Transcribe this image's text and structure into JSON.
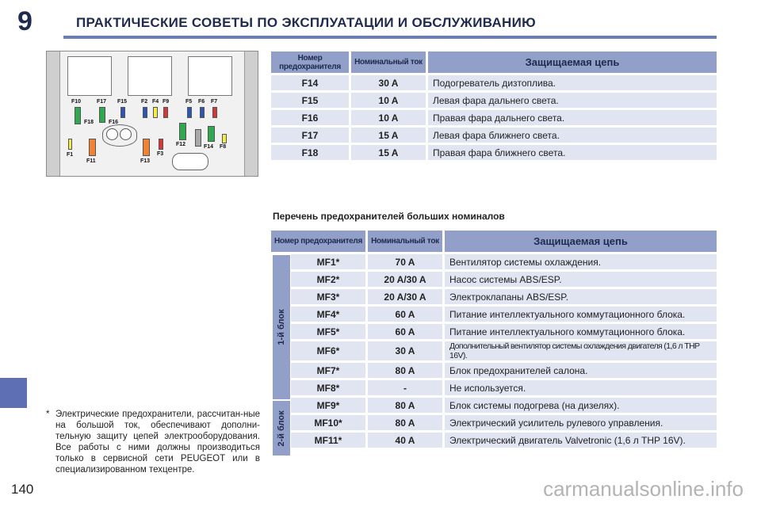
{
  "header": {
    "chapter_number": "9",
    "title": "ПРАКТИЧЕСКИЕ СОВЕТЫ ПО ЭКСПЛУАТАЦИИ И ОБСЛУЖИВАНИЮ"
  },
  "page_number": "140",
  "watermark": "carmanualsonline.info",
  "diagram": {
    "labels": [
      "F10",
      "F17",
      "F15",
      "F2",
      "F4",
      "F9",
      "F5",
      "F6",
      "F7",
      "F18",
      "F16",
      "F1",
      "F11",
      "F13",
      "F3",
      "F12",
      "F14",
      "F8"
    ],
    "colors": {
      "green": "#2fa84f",
      "blue": "#2a56b8",
      "red": "#d93535",
      "yellow": "#f2ec4a",
      "orange": "#ee8433",
      "grey": "#a9a9a9"
    }
  },
  "table1": {
    "headers": [
      "Номер предохранителя",
      "Номинальный ток",
      "Защищаемая цепь"
    ],
    "rows": [
      {
        "fuse": "F14",
        "current": "30 A",
        "circuit": "Подогреватель дизтоплива."
      },
      {
        "fuse": "F15",
        "current": "10 A",
        "circuit": "Левая фара дальнего света."
      },
      {
        "fuse": "F16",
        "current": "10 A",
        "circuit": "Правая фара дальнего света."
      },
      {
        "fuse": "F17",
        "current": "15 A",
        "circuit": "Левая фара ближнего света."
      },
      {
        "fuse": "F18",
        "current": "15 A",
        "circuit": "Правая фара ближнего света."
      }
    ]
  },
  "section_title": "Перечень предохранителей больших номиналов",
  "table2": {
    "headers": [
      "Номер предохранителя",
      "Номинальный ток",
      "Защищаемая цепь"
    ],
    "block1_label": "1-й блок",
    "block2_label": "2-й блок",
    "rows": [
      {
        "fuse": "MF1*",
        "current": "70 A",
        "circuit": "Вентилятор системы охлаждения."
      },
      {
        "fuse": "MF2*",
        "current": "20 A/30 A",
        "circuit": "Насос системы ABS/ESP."
      },
      {
        "fuse": "MF3*",
        "current": "20 A/30 A",
        "circuit": "Электроклапаны ABS/ESP."
      },
      {
        "fuse": "MF4*",
        "current": "60 A",
        "circuit": "Питание интеллектуального коммутационного блока."
      },
      {
        "fuse": "MF5*",
        "current": "60 A",
        "circuit": "Питание интеллектуального коммутационного блока."
      },
      {
        "fuse": "MF6*",
        "current": "30 A",
        "circuit": "Дополнительный вентилятор системы охлаждения двигателя (1,6 л THP 16V)."
      },
      {
        "fuse": "MF7*",
        "current": "80 A",
        "circuit": "Блок предохранителей салона."
      },
      {
        "fuse": "MF8*",
        "current": "-",
        "circuit": "Не используется."
      },
      {
        "fuse": "MF9*",
        "current": "80 A",
        "circuit": "Блок системы подогрева (на дизелях)."
      },
      {
        "fuse": "MF10*",
        "current": "80 A",
        "circuit": "Электрический усилитель рулевого управления."
      },
      {
        "fuse": "MF11*",
        "current": "40 A",
        "circuit": "Электрический двигатель Valvetronic (1,6 л THP 16V)."
      }
    ]
  },
  "footnote": {
    "star": "*",
    "text": "Электрические предохранители, рассчитан-ные на большой ток, обеспечивают дополни-тельную защиту цепей электрооборудования. Все работы с ними должны производиться только в сервисной сети PEUGEOT или в специализированном техцентре."
  }
}
